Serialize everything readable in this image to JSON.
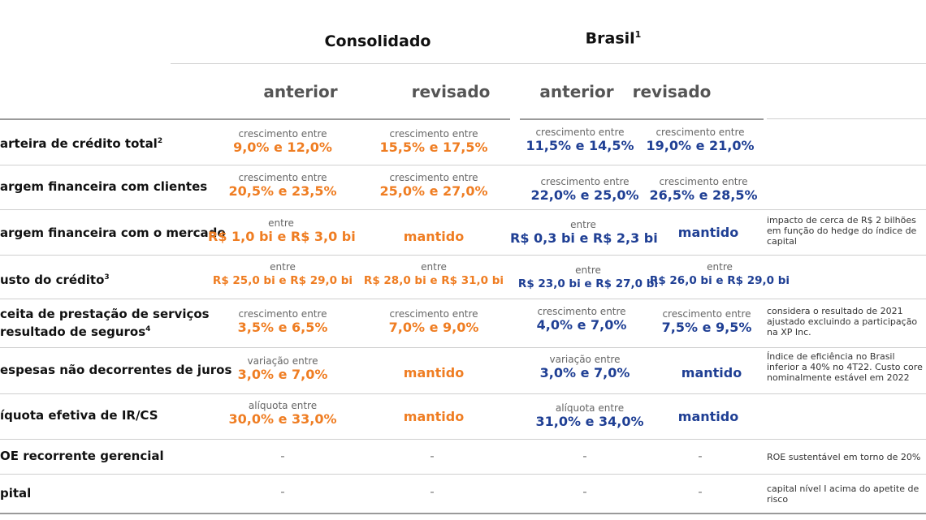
{
  "header": {
    "consolidado": "Consolidado",
    "brasil": "Brasil",
    "brasil_sup": "1",
    "anterior": "anterior",
    "revisado": "revisado"
  },
  "labels": {
    "crescimento": "crescimento entre",
    "entre": "entre",
    "variacao": "variação entre",
    "aliquota": "alíquota entre",
    "mantido": "mantido",
    "dash": "-"
  },
  "rows": [
    {
      "label": "arteira de crédito total",
      "sup": "2",
      "cons_ant": "9,0% e 12,0%",
      "cons_rev": "15,5% e 17,5%",
      "br_ant": "11,5% e 14,5%",
      "br_rev": "19,0% e 21,0%",
      "note": ""
    },
    {
      "label": "argem financeira com clientes",
      "sup": "",
      "cons_ant": "20,5% e 23,5%",
      "cons_rev": "25,0% e 27,0%",
      "br_ant": "22,0% e 25,0%",
      "br_rev": "26,5% e 28,5%",
      "note": ""
    },
    {
      "label": "argem financeira com o mercado",
      "sup": "",
      "cons_ant": "R$ 1,0 bi e R$ 3,0 bi",
      "cons_rev": "mantido",
      "br_ant": "R$ 0,3 bi e R$ 2,3 bi",
      "br_rev": "mantido",
      "note": "impacto de cerca de R$ 2 bilhões em função do hedge do índice de capital"
    },
    {
      "label": "usto do crédito",
      "sup": "3",
      "cons_ant": "R$ 25,0 bi e R$ 29,0 bi",
      "cons_rev": "R$ 28,0 bi e R$ 31,0 bi",
      "br_ant": "R$ 23,0 bi e R$ 27,0 bi",
      "br_rev": "R$ 26,0 bi e R$ 29,0 bi",
      "note": ""
    },
    {
      "label": "ceita de prestação de serviços",
      "label2": "resultado de seguros",
      "sup": "4",
      "cons_ant": "3,5% e 6,5%",
      "cons_rev": "7,0% e 9,0%",
      "br_ant": "4,0% e 7,0%",
      "br_rev": "7,5% e 9,5%",
      "note": "considera o resultado de 2021 ajustado excluindo a participação na XP Inc."
    },
    {
      "label": "espesas não decorrentes de juros",
      "sup": "",
      "cons_ant": "3,0% e 7,0%",
      "cons_rev": "mantido",
      "br_ant": "3,0% e 7,0%",
      "br_rev": "mantido",
      "note": "Índice de eficiência no Brasil inferior a 40% no 4T22. Custo core nominalmente estável em 2022"
    },
    {
      "label": "íquota efetiva de IR/CS",
      "sup": "",
      "cons_ant": "30,0% e 33,0%",
      "cons_rev": "mantido",
      "br_ant": "31,0% e 34,0%",
      "br_rev": "mantido",
      "note": ""
    },
    {
      "label": "OE recorrente gerencial",
      "sup": "",
      "note": "ROE sustentável em torno de 20%"
    },
    {
      "label": "pital",
      "sup": "",
      "note": "capital nível I acima do apetite de risco"
    }
  ]
}
